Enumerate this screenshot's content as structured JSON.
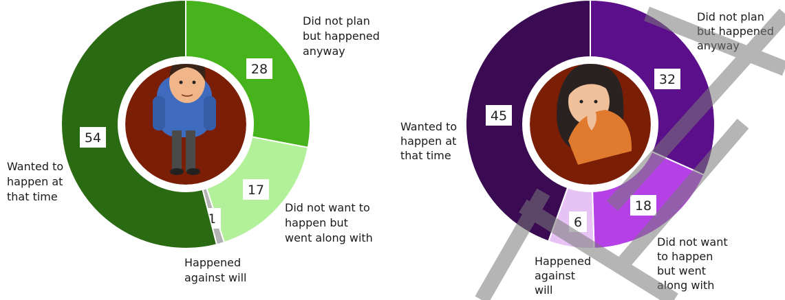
{
  "chart_data": [
    {
      "type": "donut",
      "series": [
        {
          "label_lines": [
            "Did not plan",
            "but happened",
            "anyway"
          ],
          "value": 28,
          "color": "#46b31c"
        },
        {
          "label_lines": [
            "Did not want to",
            "happen but",
            "went along with"
          ],
          "value": 17,
          "color": "#b3f09a"
        },
        {
          "label_lines": [
            "Happened",
            "against will"
          ],
          "value": 1,
          "color": "#b3b3b3"
        },
        {
          "label_lines": [
            "Wanted to",
            "happen at",
            "that time"
          ],
          "value": 54,
          "color": "#2a6a12"
        }
      ],
      "figure": "man",
      "hole_color": "#7a1e06"
    },
    {
      "type": "donut",
      "series": [
        {
          "label_lines": [
            "Did not plan",
            "but happened",
            "anyway"
          ],
          "value": 32,
          "color": "#5c0f8a"
        },
        {
          "label_lines": [
            "Did not want",
            "to happen",
            "but went",
            "along with"
          ],
          "value": 18,
          "color": "#b540e6"
        },
        {
          "label_lines": [
            "Happened",
            "against",
            "will"
          ],
          "value": 6,
          "color": "#e7c2f4"
        },
        {
          "label_lines": [
            "Wanted to",
            "happen at",
            "that time"
          ],
          "value": 45,
          "color": "#3a0a52"
        }
      ],
      "figure": "woman",
      "hole_color": "#7a1e06"
    }
  ]
}
